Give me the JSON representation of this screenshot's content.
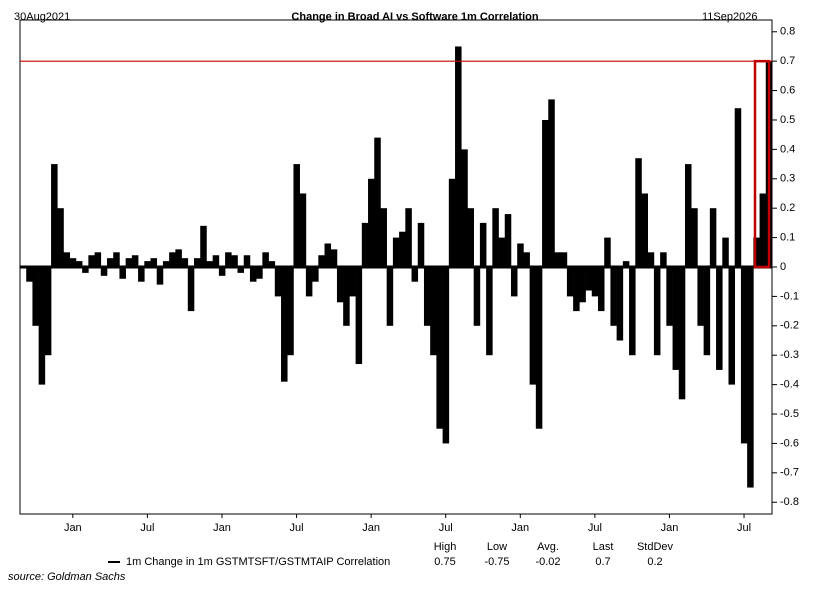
{
  "chart_data": {
    "type": "bar",
    "title": "Change in Broad AI vs Software 1m Correlation",
    "start_label": "30Aug2021",
    "end_label": "11Sep2026",
    "categories": [
      null,
      null,
      null,
      null,
      null,
      null,
      null,
      null,
      "Jan",
      null,
      null,
      null,
      null,
      null,
      null,
      null,
      null,
      null,
      null,
      null,
      "Jul",
      null,
      null,
      null,
      null,
      null,
      null,
      null,
      null,
      null,
      null,
      null,
      "Jan",
      null,
      null,
      null,
      null,
      null,
      null,
      null,
      null,
      null,
      null,
      null,
      "Jul",
      null,
      null,
      null,
      null,
      null,
      null,
      null,
      null,
      null,
      null,
      null,
      "Jan",
      null,
      null,
      null,
      null,
      null,
      null,
      null,
      null,
      null,
      null,
      null,
      "Jul",
      null,
      null,
      null,
      null,
      null,
      null,
      null,
      null,
      null,
      null,
      null,
      "Jan",
      null,
      null,
      null,
      null,
      null,
      null,
      null,
      null,
      null,
      null,
      null,
      "Jul",
      null,
      null,
      null,
      null,
      null,
      null,
      null,
      null,
      null,
      null,
      null,
      "Jan",
      null,
      null,
      null,
      null,
      null,
      null,
      null,
      null,
      null,
      null,
      null,
      "Jul",
      null,
      null,
      null,
      null
    ],
    "series": [
      {
        "name": "1m Change in 1m GSTMTSFT/GSTMTAIP Correlation",
        "color": "#000000",
        "values": [
          0,
          -0.05,
          -0.2,
          -0.4,
          -0.3,
          0.35,
          0.2,
          0.05,
          0.03,
          0.02,
          -0.02,
          0.04,
          0.05,
          -0.03,
          0.03,
          0.05,
          -0.04,
          0.03,
          0.04,
          -0.05,
          0.02,
          0.03,
          -0.06,
          0.02,
          0.05,
          0.06,
          0.03,
          -0.15,
          0.03,
          0.14,
          0.02,
          0.04,
          -0.03,
          0.05,
          0.04,
          -0.02,
          0.04,
          -0.05,
          -0.04,
          0.05,
          0.02,
          -0.1,
          -0.39,
          -0.3,
          0.35,
          0.25,
          -0.1,
          -0.05,
          0.04,
          0.08,
          0.06,
          -0.12,
          -0.2,
          -0.1,
          -0.33,
          0.15,
          0.3,
          0.44,
          0.2,
          -0.2,
          0.1,
          0.12,
          0.2,
          -0.05,
          0.15,
          -0.2,
          -0.3,
          -0.55,
          -0.6,
          0.3,
          0.75,
          0.4,
          0.2,
          -0.2,
          0.15,
          -0.3,
          0.2,
          0.1,
          0.18,
          -0.1,
          0.08,
          0.05,
          -0.4,
          -0.55,
          0.5,
          0.57,
          0.05,
          0.05,
          -0.1,
          -0.15,
          -0.12,
          -0.08,
          -0.1,
          -0.15,
          0.1,
          -0.2,
          -0.25,
          0.02,
          -0.3,
          0.37,
          0.25,
          0.05,
          -0.3,
          0.05,
          -0.2,
          -0.35,
          -0.45,
          0.35,
          0.2,
          -0.2,
          -0.3,
          0.2,
          -0.35,
          0.1,
          -0.4,
          0.54,
          -0.6,
          -0.75,
          0.1,
          0.25,
          0.7
        ]
      }
    ],
    "ylim": [
      -0.84,
      0.84
    ],
    "yticks": [
      -0.8,
      -0.7,
      -0.6,
      -0.5,
      -0.4,
      -0.3,
      -0.2,
      -0.1,
      0,
      0.1,
      0.2,
      0.3,
      0.4,
      0.5,
      0.6,
      0.7,
      0.8
    ],
    "reference_line": {
      "value": 0.7,
      "color": "#c00000"
    },
    "stats": {
      "labels": [
        "High",
        "Low",
        "Avg.",
        "Last",
        "StdDev"
      ],
      "values": [
        0.75,
        -0.75,
        -0.02,
        0.7,
        0.2
      ]
    },
    "source": "source: Goldman Sachs"
  }
}
